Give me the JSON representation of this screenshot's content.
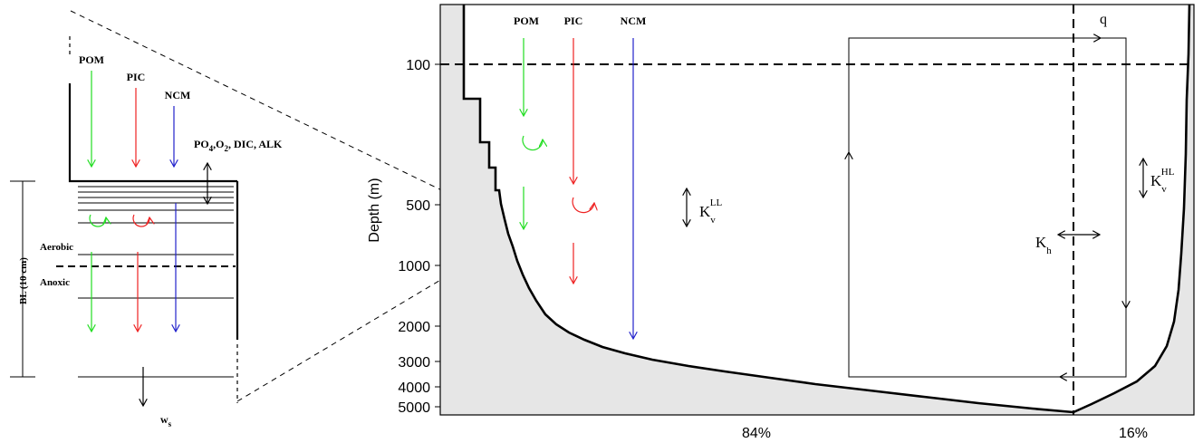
{
  "colors": {
    "pom": "#22dd22",
    "pic": "#ee2222",
    "ncm": "#2222cc",
    "sediment_fill": "#e6e6e6",
    "line": "#000000"
  },
  "detail": {
    "pom_label": "POM",
    "pic_label": "PIC",
    "ncm_label": "NCM",
    "exchange_label": "PO",
    "exchange_sub1": "4",
    "exchange_mid": ",O",
    "exchange_sub2": "2",
    "exchange_rest": ", DIC, ALK",
    "aerobic_label": "Aerobic",
    "anoxic_label": "Anoxic",
    "bl_label": "BL (10 cm)",
    "burial_label": "w",
    "burial_sub": "s"
  },
  "main": {
    "ylabel": "Depth (m)",
    "y_ticks": [
      "100",
      "500",
      "1000",
      "2000",
      "3000",
      "4000",
      "5000"
    ],
    "pom_label": "POM",
    "pic_label": "PIC",
    "ncm_label": "NCM",
    "q_label": "q",
    "kv_ll_base": "K",
    "kv_ll_sub": "v",
    "kv_ll_sup": "LL",
    "kv_hl_base": "K",
    "kv_hl_sub": "v",
    "kv_hl_sup": "HL",
    "kh_base": "K",
    "kh_sub": "h",
    "low_lat_pct": "84%",
    "high_lat_pct": "16%"
  }
}
